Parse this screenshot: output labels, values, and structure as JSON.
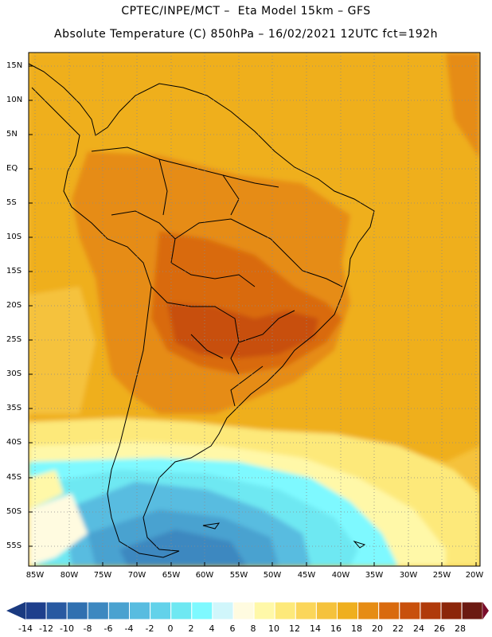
{
  "header": {
    "line1": "CPTEC/INPE/MCT –  Eta Model 15km – GFS",
    "line2": "Absolute Temperature (C) 850hPa – 16/02/2021 12UTC fct=192h"
  },
  "map": {
    "lat_labels": [
      "15N",
      "10N",
      "5N",
      "EQ",
      "5S",
      "10S",
      "15S",
      "20S",
      "25S",
      "30S",
      "35S",
      "40S",
      "45S",
      "50S",
      "55S"
    ],
    "lon_labels": [
      "85W",
      "80W",
      "75W",
      "70W",
      "65W",
      "60W",
      "55W",
      "50W",
      "45W",
      "40W",
      "35W",
      "30W",
      "25W",
      "20W"
    ]
  },
  "colorbar": {
    "labels": [
      "-14",
      "-12",
      "-10",
      "-8",
      "-6",
      "-4",
      "-2",
      "0",
      "2",
      "4",
      "6",
      "8",
      "10",
      "12",
      "14",
      "16",
      "18",
      "20",
      "22",
      "24",
      "26",
      "28"
    ],
    "colors": [
      "#1e3f8c",
      "#2859a1",
      "#3070b0",
      "#3d88c0",
      "#4aa2d0",
      "#58bce0",
      "#63d2ea",
      "#6ee8f2",
      "#7ef9ff",
      "#d0f6fb",
      "#fffbe0",
      "#fff8a8",
      "#fde97a",
      "#fbd65a",
      "#f5c23c",
      "#efaf1e",
      "#e68c14",
      "#d96a0e",
      "#c8500c",
      "#b03a0a",
      "#8c260a",
      "#6b1a12"
    ],
    "under_color": "#1a3a80",
    "over_color": "#7a0c2a"
  }
}
